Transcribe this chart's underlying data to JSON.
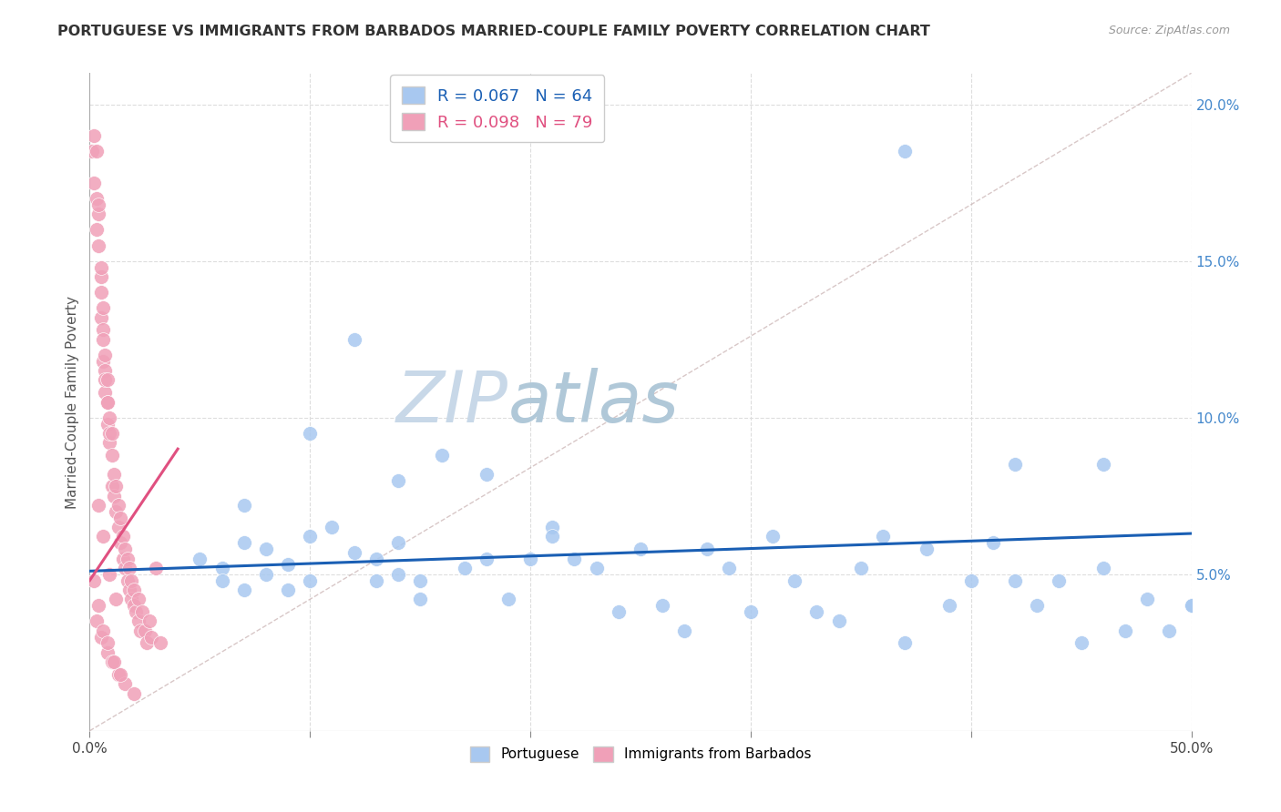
{
  "title": "PORTUGUESE VS IMMIGRANTS FROM BARBADOS MARRIED-COUPLE FAMILY POVERTY CORRELATION CHART",
  "source": "Source: ZipAtlas.com",
  "ylabel": "Married-Couple Family Poverty",
  "xlim": [
    0,
    0.5
  ],
  "ylim": [
    0,
    0.21
  ],
  "x_ticks": [
    0.0,
    0.1,
    0.2,
    0.3,
    0.4,
    0.5
  ],
  "x_tick_labels": [
    "0.0%",
    "",
    "",
    "",
    "",
    "50.0%"
  ],
  "y_ticks_right": [
    0.05,
    0.1,
    0.15,
    0.2
  ],
  "y_tick_labels_right": [
    "5.0%",
    "10.0%",
    "15.0%",
    "20.0%"
  ],
  "blue_R": "0.067",
  "blue_N": "64",
  "pink_R": "0.098",
  "pink_N": "79",
  "blue_color": "#a8c8f0",
  "blue_line_color": "#1a5fb4",
  "pink_color": "#f0a0b8",
  "pink_line_color": "#e05080",
  "diagonal_color": "#c8b0b0",
  "grid_color": "#dddddd",
  "watermark_zip": "ZIP",
  "watermark_atlas": "atlas",
  "watermark_color_zip": "#c8d8e8",
  "watermark_color_atlas": "#b0c8d8",
  "title_color": "#333333",
  "axis_label_color": "#555555",
  "right_tick_color": "#4488cc",
  "bottom_tick_color": "#444444",
  "blue_scatter_x": [
    0.05,
    0.06,
    0.06,
    0.07,
    0.07,
    0.08,
    0.08,
    0.09,
    0.09,
    0.1,
    0.1,
    0.11,
    0.12,
    0.12,
    0.13,
    0.13,
    0.14,
    0.14,
    0.15,
    0.15,
    0.16,
    0.17,
    0.18,
    0.18,
    0.19,
    0.2,
    0.21,
    0.22,
    0.23,
    0.24,
    0.25,
    0.26,
    0.27,
    0.28,
    0.29,
    0.3,
    0.31,
    0.32,
    0.33,
    0.34,
    0.35,
    0.36,
    0.37,
    0.38,
    0.39,
    0.4,
    0.41,
    0.42,
    0.43,
    0.44,
    0.45,
    0.46,
    0.47,
    0.48,
    0.49,
    0.5,
    0.37,
    0.42,
    0.46,
    0.5,
    0.07,
    0.1,
    0.14,
    0.21
  ],
  "blue_scatter_y": [
    0.055,
    0.052,
    0.048,
    0.06,
    0.045,
    0.058,
    0.05,
    0.053,
    0.045,
    0.062,
    0.048,
    0.065,
    0.125,
    0.057,
    0.055,
    0.048,
    0.06,
    0.05,
    0.048,
    0.042,
    0.088,
    0.052,
    0.082,
    0.055,
    0.042,
    0.055,
    0.065,
    0.055,
    0.052,
    0.038,
    0.058,
    0.04,
    0.032,
    0.058,
    0.052,
    0.038,
    0.062,
    0.048,
    0.038,
    0.035,
    0.052,
    0.062,
    0.028,
    0.058,
    0.04,
    0.048,
    0.06,
    0.048,
    0.04,
    0.048,
    0.028,
    0.052,
    0.032,
    0.042,
    0.032,
    0.04,
    0.185,
    0.085,
    0.085,
    0.04,
    0.072,
    0.095,
    0.08,
    0.062
  ],
  "pink_scatter_x": [
    0.001,
    0.002,
    0.002,
    0.003,
    0.003,
    0.003,
    0.004,
    0.004,
    0.004,
    0.005,
    0.005,
    0.005,
    0.005,
    0.006,
    0.006,
    0.006,
    0.006,
    0.007,
    0.007,
    0.007,
    0.007,
    0.008,
    0.008,
    0.008,
    0.008,
    0.009,
    0.009,
    0.009,
    0.01,
    0.01,
    0.01,
    0.011,
    0.011,
    0.012,
    0.012,
    0.013,
    0.013,
    0.014,
    0.014,
    0.015,
    0.015,
    0.016,
    0.016,
    0.017,
    0.017,
    0.018,
    0.018,
    0.019,
    0.019,
    0.02,
    0.02,
    0.021,
    0.022,
    0.022,
    0.023,
    0.024,
    0.025,
    0.026,
    0.027,
    0.028,
    0.03,
    0.032,
    0.004,
    0.006,
    0.009,
    0.012,
    0.003,
    0.005,
    0.008,
    0.01,
    0.013,
    0.016,
    0.02,
    0.002,
    0.004,
    0.006,
    0.008,
    0.011,
    0.014
  ],
  "pink_scatter_y": [
    0.185,
    0.175,
    0.19,
    0.17,
    0.16,
    0.185,
    0.165,
    0.155,
    0.168,
    0.145,
    0.132,
    0.14,
    0.148,
    0.128,
    0.118,
    0.135,
    0.125,
    0.115,
    0.108,
    0.12,
    0.112,
    0.105,
    0.098,
    0.112,
    0.105,
    0.092,
    0.1,
    0.095,
    0.088,
    0.078,
    0.095,
    0.075,
    0.082,
    0.07,
    0.078,
    0.065,
    0.072,
    0.06,
    0.068,
    0.055,
    0.062,
    0.052,
    0.058,
    0.048,
    0.055,
    0.045,
    0.052,
    0.042,
    0.048,
    0.04,
    0.045,
    0.038,
    0.035,
    0.042,
    0.032,
    0.038,
    0.032,
    0.028,
    0.035,
    0.03,
    0.052,
    0.028,
    0.072,
    0.062,
    0.05,
    0.042,
    0.035,
    0.03,
    0.025,
    0.022,
    0.018,
    0.015,
    0.012,
    0.048,
    0.04,
    0.032,
    0.028,
    0.022,
    0.018
  ]
}
